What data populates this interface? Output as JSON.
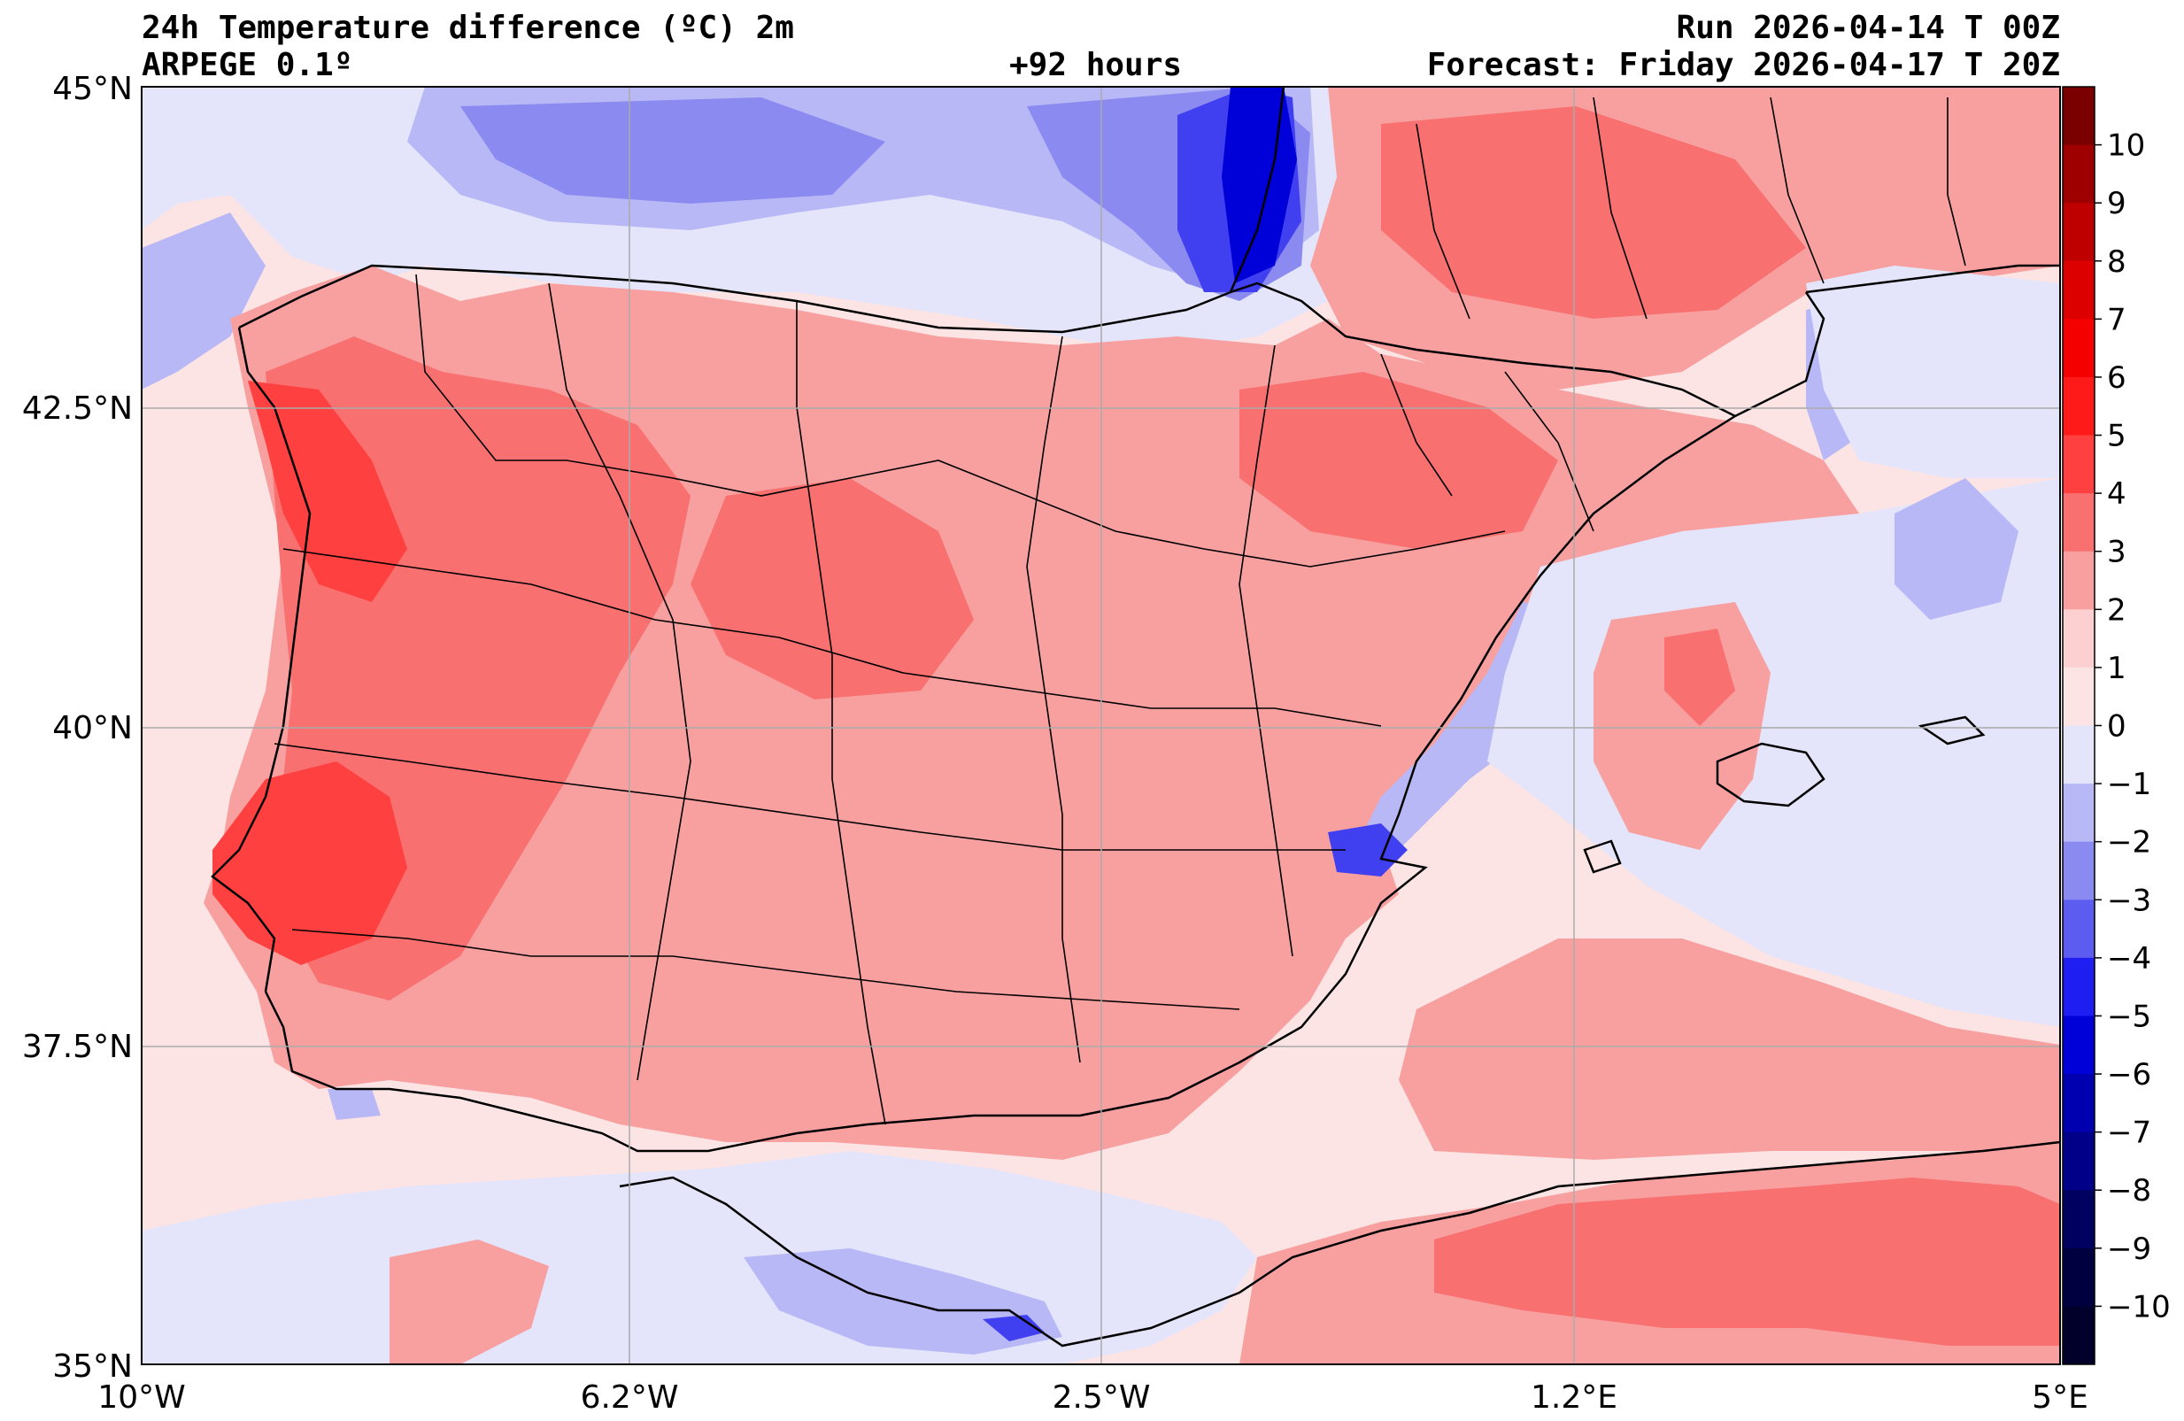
{
  "header": {
    "title": "24h Temperature difference (ºC) 2m",
    "model": "ARPEGE 0.1º",
    "lead": "+92 hours",
    "run": "Run 2026-04-14 T 00Z",
    "forecast": "Forecast: Friday 2026-04-17 T 20Z"
  },
  "axes": {
    "lat_ticks": [
      "45°N",
      "42.5°N",
      "40°N",
      "37.5°N",
      "35°N"
    ],
    "lon_ticks": [
      "10°W",
      "6.2°W",
      "2.5°W",
      "1.2°E",
      "5°E"
    ],
    "lat_range": [
      35,
      45
    ],
    "lon_range": [
      -10,
      5
    ],
    "grid": true
  },
  "colorbar": {
    "levels": [
      "10",
      "9",
      "8",
      "7",
      "6",
      "5",
      "4",
      "3",
      "2",
      "1",
      "0",
      "−1",
      "−2",
      "−3",
      "−4",
      "−5",
      "−6",
      "−7",
      "−8",
      "−9",
      "−10"
    ],
    "colors": [
      "#7a0000",
      "#9e0000",
      "#bf0000",
      "#dc0000",
      "#f50000",
      "#ff1a1a",
      "#ff4040",
      "#f87070",
      "#f8a0a0",
      "#fcd0d0",
      "#fde4e4",
      "#e4e4fa",
      "#b8b8f6",
      "#8a8af0",
      "#5c5cf0",
      "#1e1ef2",
      "#0000d8",
      "#0000b0",
      "#000088",
      "#000060",
      "#000040",
      "#00002a"
    ]
  },
  "palette": {
    "sea_base": "#fde4e4",
    "pos1": "#f8a0a0",
    "pos2": "#f87070",
    "pos3": "#ff4040",
    "neg1": "#e4e4fa",
    "neg2": "#b8b8f6",
    "neg3": "#8a8af0",
    "neg4": "#4040f0",
    "neg5": "#0000d8"
  }
}
